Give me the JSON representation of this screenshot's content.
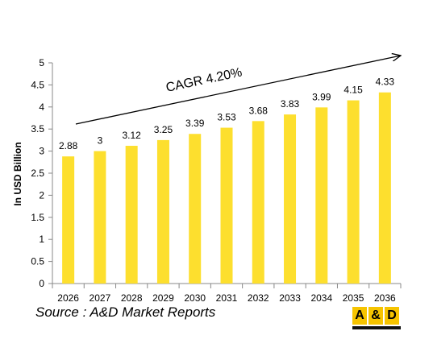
{
  "chart_data": {
    "type": "bar",
    "categories": [
      "2026",
      "2027",
      "2028",
      "2029",
      "2030",
      "2031",
      "2032",
      "2033",
      "2034",
      "2035",
      "2036"
    ],
    "values": [
      2.88,
      3,
      3.12,
      3.25,
      3.39,
      3.53,
      3.68,
      3.83,
      3.99,
      4.15,
      4.33
    ],
    "data_labels": [
      "2.88",
      "3",
      "3.12",
      "3.25",
      "3.39",
      "3.53",
      "3.68",
      "3.83",
      "3.99",
      "4.15",
      "4.33"
    ],
    "ylabel": "In USD Billion",
    "xlabel": "",
    "ylim": [
      0,
      5
    ],
    "yticks": [
      0,
      0.5,
      1,
      1.5,
      2,
      2.5,
      3,
      3.5,
      4,
      4.5,
      5
    ],
    "ytick_labels": [
      "0",
      "0.5",
      "1",
      "1.5",
      "2",
      "2.5",
      "3",
      "3.5",
      "4",
      "4.5",
      "5"
    ],
    "grid": false,
    "bar_color": "#FDDF2E",
    "annotation": "CAGR 4.20%"
  },
  "source": "Source : A&D Market Reports",
  "logo": {
    "left": "A",
    "mid": "&",
    "right": "D",
    "color": "#F6C400"
  }
}
